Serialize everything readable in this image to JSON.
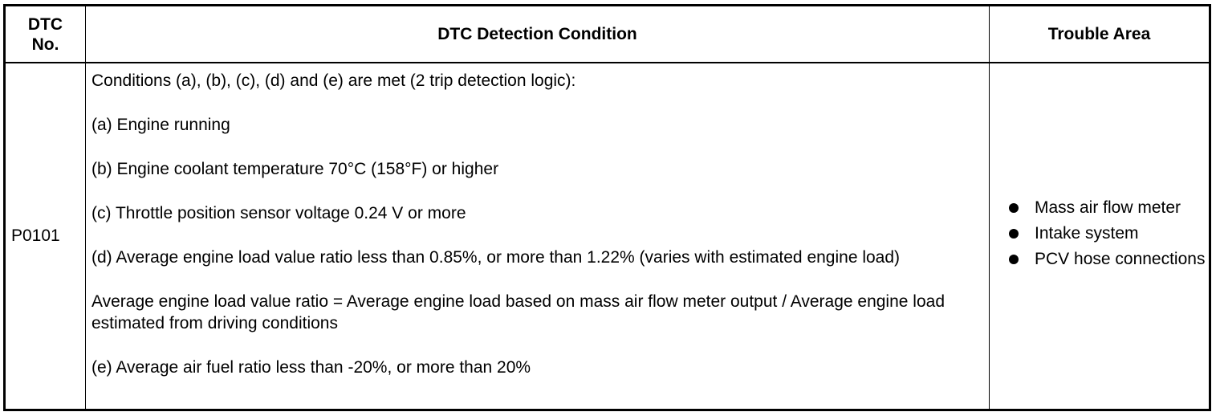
{
  "table": {
    "headers": {
      "dtc_no": "DTC\nNo.",
      "condition": "DTC Detection Condition",
      "trouble_area": "Trouble Area"
    },
    "rows": [
      {
        "dtc_no": "P0101",
        "conditions": [
          "Conditions (a), (b), (c), (d) and (e) are met (2 trip detection logic):",
          "(a) Engine running",
          "(b) Engine coolant temperature 70°C (158°F) or higher",
          "(c) Throttle position sensor voltage 0.24 V or more",
          "(d) Average engine load value ratio less than 0.85%, or more than 1.22% (varies with estimated engine load)",
          "Average engine load value ratio = Average engine load based on mass air flow meter output / Average engine load estimated from driving conditions",
          "(e) Average air fuel ratio less than -20%, or more than 20%"
        ],
        "trouble_areas": [
          "Mass air flow meter",
          "Intake system",
          "PCV hose connections"
        ]
      }
    ]
  }
}
